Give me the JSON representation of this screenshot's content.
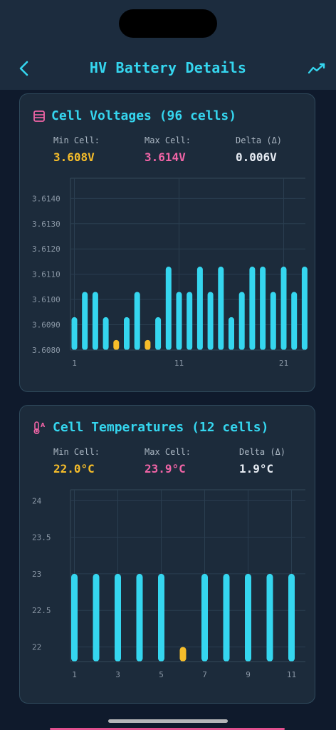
{
  "header": {
    "title": "HV Battery Details",
    "back_icon": "chevron-left-icon",
    "trend_icon": "trend-line-icon"
  },
  "colors": {
    "accent": "#35d6ef",
    "min": "#f6bd2a",
    "max": "#f064a6",
    "delta": "#e6ebf2",
    "background": "#0f1a2c",
    "card": "#1c2b3b"
  },
  "voltages": {
    "title": "Cell Voltages (96 cells)",
    "icon": "battery-grid-icon",
    "stats": {
      "min_label": "Min Cell:",
      "min_value": "3.608V",
      "max_label": "Max Cell:",
      "max_value": "3.614V",
      "delta_label": "Delta (Δ)",
      "delta_value": "0.006V"
    },
    "chart_data": {
      "type": "bar",
      "ylim": [
        3.608,
        3.6148
      ],
      "yticks": [
        "3.6140",
        "3.6130",
        "3.6120",
        "3.6110",
        "3.6100",
        "3.6090",
        "3.6080"
      ],
      "ytick_values": [
        3.614,
        3.613,
        3.612,
        3.611,
        3.61,
        3.609,
        3.608
      ],
      "xticks": [
        {
          "cell": 1,
          "label": "1"
        },
        {
          "cell": 11,
          "label": "11"
        },
        {
          "cell": 21,
          "label": "21"
        }
      ],
      "values": [
        3.6093,
        3.6103,
        3.6103,
        3.6093,
        3.6084,
        3.6093,
        3.6103,
        3.6084,
        3.6093,
        3.6113,
        3.6103,
        3.6103,
        3.6113,
        3.6103,
        3.6113,
        3.6093,
        3.6103,
        3.6113,
        3.6113,
        3.6103,
        3.6113,
        3.6103,
        3.6113
      ],
      "highlight_min": [
        5,
        8
      ],
      "grid": true
    }
  },
  "temperatures": {
    "title": "Cell Temperatures (12 cells)",
    "icon": "thermometer-icon",
    "stats": {
      "min_label": "Min Cell:",
      "min_value": "22.0°C",
      "max_label": "Max Cell:",
      "max_value": "23.9°C",
      "delta_label": "Delta (Δ)",
      "delta_value": "1.9°C"
    },
    "chart_data": {
      "type": "bar",
      "ylim": [
        21.8,
        24.15
      ],
      "yticks": [
        "24",
        "23.5",
        "23",
        "22.5",
        "22"
      ],
      "ytick_values": [
        24,
        23.5,
        23,
        22.5,
        22
      ],
      "xticks": [
        {
          "cell": 1,
          "label": "1"
        },
        {
          "cell": 3,
          "label": "3"
        },
        {
          "cell": 5,
          "label": "5"
        },
        {
          "cell": 7,
          "label": "7"
        },
        {
          "cell": 9,
          "label": "9"
        },
        {
          "cell": 11,
          "label": "11"
        }
      ],
      "values": [
        23.0,
        23.0,
        23.0,
        23.0,
        23.0,
        22.0,
        23.0,
        23.0,
        23.0,
        23.0,
        23.0
      ],
      "highlight_min": [
        6
      ],
      "grid": true
    }
  }
}
